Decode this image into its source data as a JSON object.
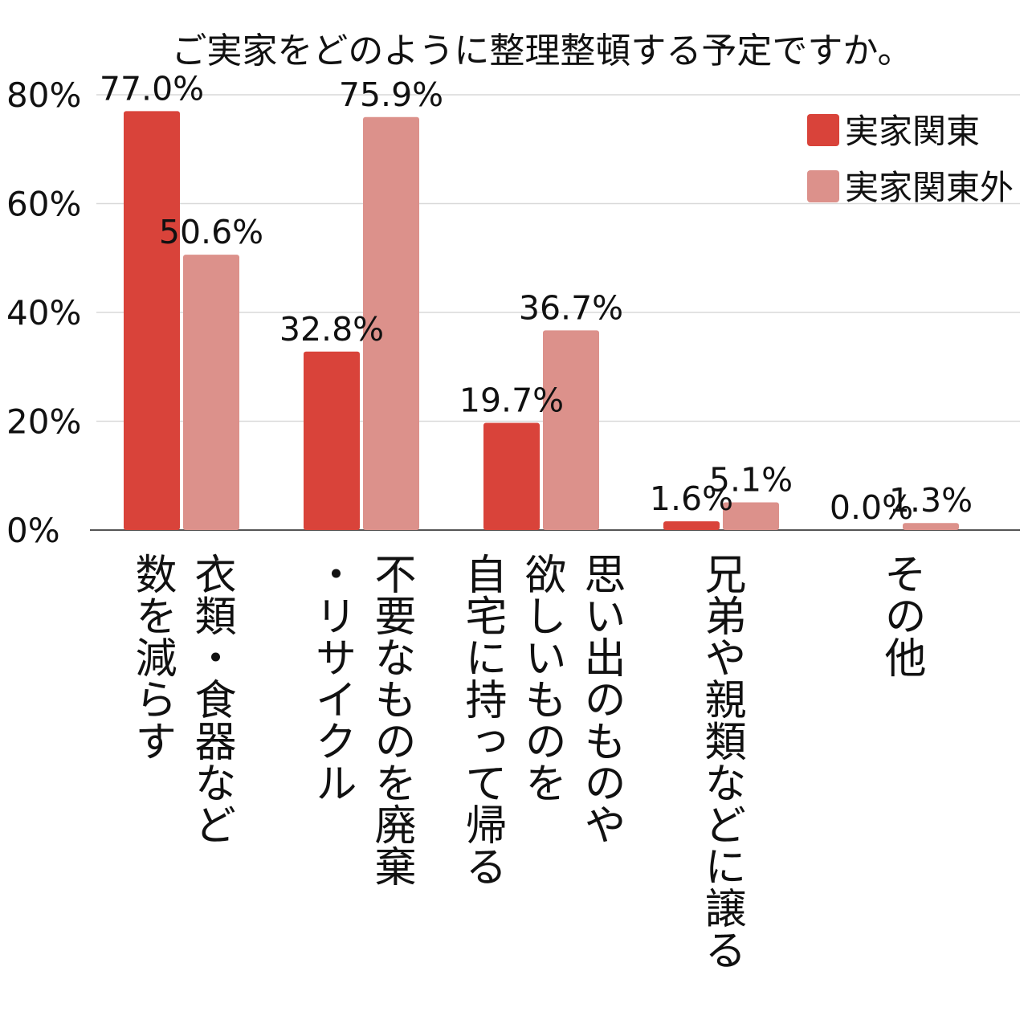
{
  "chart_data": {
    "type": "bar",
    "title": "ご実家をどのように整理整頓する予定ですか。",
    "categories": [
      [
        "衣類・食器など",
        "数を減らす"
      ],
      [
        "不要なものを廃棄",
        "・リサイクル"
      ],
      [
        "思い出のものや",
        "欲しいものを",
        "自宅に持って帰る"
      ],
      [
        "兄弟や親類などに譲る"
      ],
      [
        "その他"
      ]
    ],
    "series": [
      {
        "name": "実家関東",
        "color": "#d9433a",
        "values": [
          77.0,
          32.8,
          19.7,
          1.6,
          0.0
        ],
        "labels": [
          "77.0%",
          "32.8%",
          "19.7%",
          "1.6%",
          "0.0%"
        ]
      },
      {
        "name": "実家関東外",
        "color": "#dc918b",
        "values": [
          50.6,
          75.9,
          36.7,
          5.1,
          1.3
        ],
        "labels": [
          "50.6%",
          "75.9%",
          "36.7%",
          "5.1%",
          "1.3%"
        ]
      }
    ],
    "y_ticks": [
      "0%",
      "20%",
      "40%",
      "60%",
      "80%"
    ],
    "ylim": [
      0,
      80
    ],
    "grid": true,
    "legend_position": "top-right"
  }
}
